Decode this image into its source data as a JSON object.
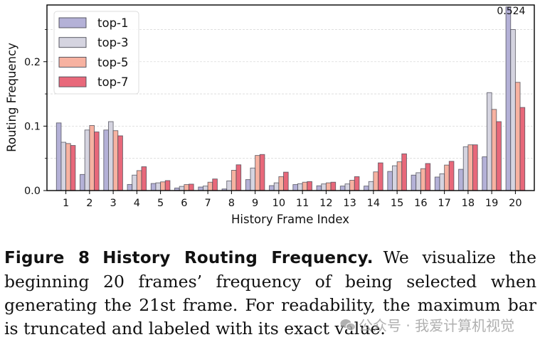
{
  "chart_data": {
    "type": "bar",
    "title": "",
    "xlabel": "History Frame Index",
    "ylabel": "Routing Frequency",
    "categories": [
      "1",
      "2",
      "3",
      "4",
      "5",
      "6",
      "7",
      "8",
      "9",
      "10",
      "11",
      "12",
      "13",
      "14",
      "15",
      "16",
      "17",
      "18",
      "19",
      "20"
    ],
    "series": [
      {
        "name": "top-1",
        "color": "#b4b1d7",
        "values": [
          0.105,
          0.025,
          0.094,
          0.0095,
          0.011,
          0.004,
          0.0055,
          0.0025,
          0.017,
          0.0077,
          0.0093,
          0.0074,
          0.007,
          0.007,
          0.0297,
          0.024,
          0.021,
          0.033,
          0.0524,
          0.524
        ]
      },
      {
        "name": "top-3",
        "color": "#d5d4e0",
        "values": [
          0.075,
          0.094,
          0.107,
          0.024,
          0.012,
          0.0065,
          0.007,
          0.015,
          0.035,
          0.012,
          0.0107,
          0.0103,
          0.0103,
          0.014,
          0.0385,
          0.0277,
          0.026,
          0.068,
          0.152,
          0.25
        ]
      },
      {
        "name": "top-5",
        "color": "#f7b2a1",
        "values": [
          0.073,
          0.101,
          0.093,
          0.031,
          0.0135,
          0.0093,
          0.013,
          0.0315,
          0.0545,
          0.0216,
          0.013,
          0.012,
          0.016,
          0.029,
          0.0447,
          0.034,
          0.0396,
          0.071,
          0.126,
          0.168
        ]
      },
      {
        "name": "top-7",
        "color": "#e8687a",
        "values": [
          0.07,
          0.091,
          0.085,
          0.037,
          0.0155,
          0.01,
          0.018,
          0.04,
          0.056,
          0.0286,
          0.014,
          0.013,
          0.0216,
          0.043,
          0.057,
          0.042,
          0.0454,
          0.071,
          0.107,
          0.129
        ]
      }
    ],
    "ylim": [
      0,
      0.288
    ],
    "xlim": [
      0.2,
      20.8
    ],
    "yticks": [
      0.0,
      0.1,
      0.2
    ],
    "ytick_labels": [
      "0.0",
      "0.1",
      "0.2"
    ],
    "yminor_ticks": [
      0.05,
      0.15,
      0.25
    ],
    "grid": "horizontal dashed (major + minor)",
    "legend_position": "upper left",
    "annotations": [
      {
        "text": "0.524",
        "x": "20",
        "series": "top-1",
        "note": "bar truncated at axis top and labeled with exact value"
      }
    ]
  },
  "caption": {
    "figure_number": "Figure 8",
    "title": "History Routing Frequency.",
    "body": "We visualize the beginning 20 frames’ frequency of being selected when generating the 21st frame. For readability, the maximum bar is truncated and labeled with its exact value."
  },
  "watermark": {
    "text": "公众号 · 我爱计算机视觉"
  }
}
